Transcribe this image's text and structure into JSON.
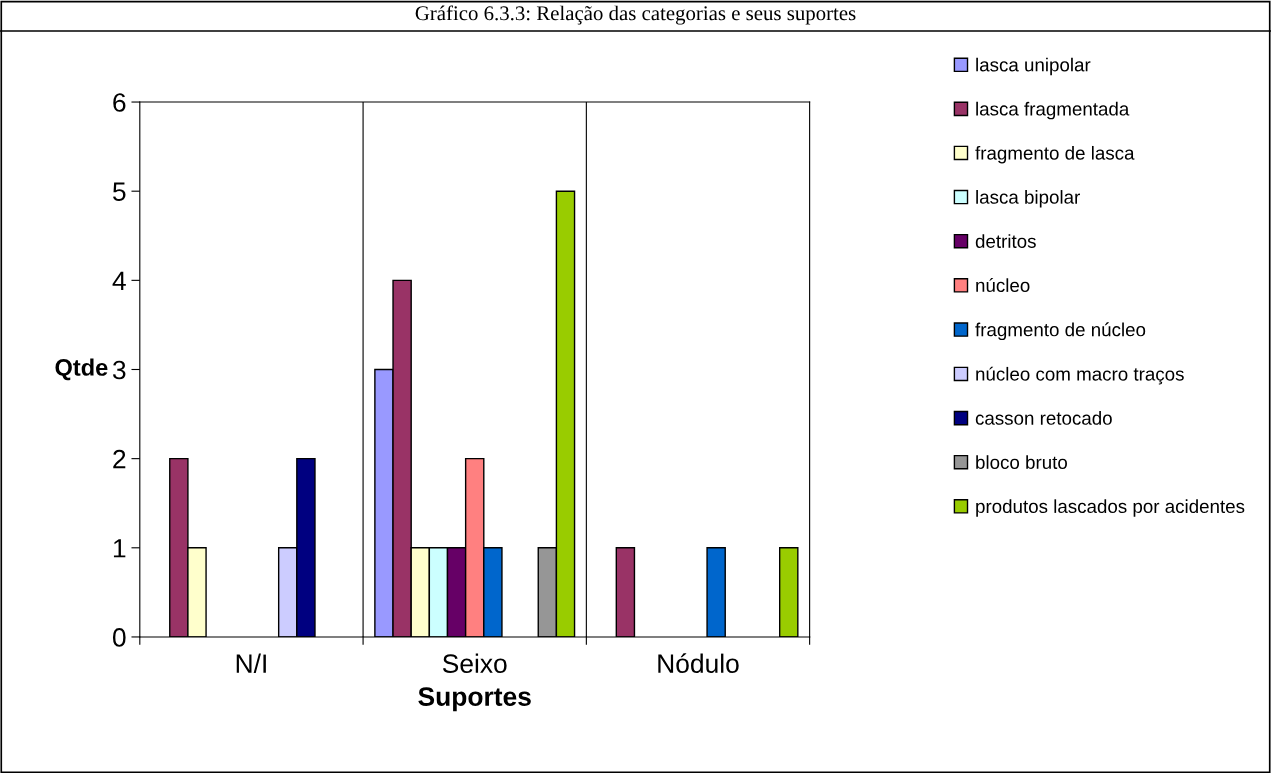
{
  "chart_data": {
    "type": "bar",
    "title": "Gráfico 6.3.3: Relação das categorias e seus suportes",
    "xlabel": "Suportes",
    "ylabel": "Qtde",
    "categories": [
      "N/I",
      "Seixo",
      "Nódulo"
    ],
    "series": [
      {
        "name": "lasca unipolar",
        "color": "#9999ff",
        "values": [
          0,
          3,
          0
        ]
      },
      {
        "name": "lasca fragmentada",
        "color": "#993366",
        "values": [
          2,
          4,
          1
        ]
      },
      {
        "name": "fragmento de lasca",
        "color": "#ffffcc",
        "values": [
          1,
          1,
          0
        ]
      },
      {
        "name": "lasca bipolar",
        "color": "#ccffff",
        "values": [
          0,
          1,
          0
        ]
      },
      {
        "name": "detritos",
        "color": "#660066",
        "values": [
          0,
          1,
          0
        ]
      },
      {
        "name": "núcleo",
        "color": "#ff8080",
        "values": [
          0,
          2,
          0
        ]
      },
      {
        "name": "fragmento de núcleo",
        "color": "#0066cc",
        "values": [
          0,
          1,
          1
        ]
      },
      {
        "name": "núcleo com macro traços",
        "color": "#ccccff",
        "values": [
          1,
          0,
          0
        ]
      },
      {
        "name": "casson retocado",
        "color": "#000080",
        "values": [
          2,
          0,
          0
        ]
      },
      {
        "name": "bloco bruto",
        "color": "#969696",
        "values": [
          0,
          1,
          0
        ]
      },
      {
        "name": "produtos lascados por acidentes",
        "color": "#99cc00",
        "values": [
          0,
          5,
          1
        ]
      }
    ],
    "ylim": [
      0,
      6
    ],
    "yticks": [
      0,
      1,
      2,
      3,
      4,
      5,
      6
    ],
    "grid": "x",
    "legend": "right"
  }
}
